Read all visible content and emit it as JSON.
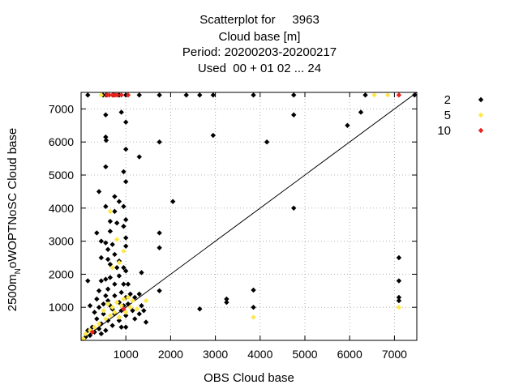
{
  "chart_data": {
    "type": "scatter",
    "title_lines": [
      "Scatterplot for     3963",
      "Cloud base [m]",
      "Period: 20200203-20200217",
      "Used  00 + 01 02 ... 24"
    ],
    "xlabel": "OBS Cloud base",
    "ylabel": "2500m_N oWOPTNoSC Cloud base",
    "ylabel_main": "2500m",
    "ylabel_sub": "N",
    "ylabel_rest": "oWOPTNoSC Cloud base",
    "xlim": [
      0,
      7500
    ],
    "ylim": [
      0,
      7500
    ],
    "xticks": [
      1000,
      2000,
      3000,
      4000,
      5000,
      6000,
      7000
    ],
    "yticks": [
      1000,
      2000,
      3000,
      4000,
      5000,
      6000,
      7000
    ],
    "grid": true,
    "diagonal": true,
    "legend_position": "right",
    "series": [
      {
        "name": "2",
        "color": "#000000",
        "points": [
          [
            150,
            7420
          ],
          [
            490,
            7420
          ],
          [
            560,
            7420
          ],
          [
            720,
            7420
          ],
          [
            850,
            7420
          ],
          [
            1000,
            7420
          ],
          [
            1300,
            7420
          ],
          [
            1750,
            7420
          ],
          [
            2350,
            7420
          ],
          [
            2650,
            7420
          ],
          [
            2950,
            7420
          ],
          [
            3850,
            7420
          ],
          [
            4750,
            7420
          ],
          [
            6350,
            7420
          ],
          [
            7450,
            7420
          ],
          [
            900,
            6900
          ],
          [
            6250,
            6900
          ],
          [
            550,
            6820
          ],
          [
            4750,
            6820
          ],
          [
            1000,
            6600
          ],
          [
            5950,
            6500
          ],
          [
            2950,
            6200
          ],
          [
            550,
            6150
          ],
          [
            560,
            6050
          ],
          [
            1750,
            6000
          ],
          [
            4150,
            6000
          ],
          [
            1000,
            5780
          ],
          [
            1300,
            5550
          ],
          [
            550,
            5250
          ],
          [
            950,
            5100
          ],
          [
            1000,
            4800
          ],
          [
            400,
            4500
          ],
          [
            750,
            4350
          ],
          [
            850,
            4200
          ],
          [
            2050,
            4200
          ],
          [
            950,
            4050
          ],
          [
            550,
            4050
          ],
          [
            750,
            3900
          ],
          [
            4750,
            4000
          ],
          [
            1000,
            3650
          ],
          [
            650,
            3600
          ],
          [
            800,
            3550
          ],
          [
            950,
            3450
          ],
          [
            650,
            3300
          ],
          [
            350,
            3250
          ],
          [
            1750,
            3250
          ],
          [
            1000,
            3100
          ],
          [
            450,
            3000
          ],
          [
            550,
            2950
          ],
          [
            700,
            2900
          ],
          [
            1000,
            2850
          ],
          [
            600,
            2750
          ],
          [
            1750,
            2800
          ],
          [
            750,
            2600
          ],
          [
            450,
            2500
          ],
          [
            600,
            2450
          ],
          [
            850,
            2400
          ],
          [
            650,
            2300
          ],
          [
            800,
            2200
          ],
          [
            950,
            2200
          ],
          [
            1000,
            2100
          ],
          [
            1350,
            2050
          ],
          [
            850,
            1950
          ],
          [
            650,
            1900
          ],
          [
            550,
            1850
          ],
          [
            150,
            1800
          ],
          [
            450,
            1800
          ],
          [
            750,
            1700
          ],
          [
            950,
            1700
          ],
          [
            1050,
            1700
          ],
          [
            600,
            1550
          ],
          [
            400,
            1500
          ],
          [
            1750,
            1500
          ],
          [
            900,
            1450
          ],
          [
            1100,
            1400
          ],
          [
            1300,
            1400
          ],
          [
            550,
            1350
          ],
          [
            750,
            1350
          ],
          [
            1000,
            1300
          ],
          [
            1200,
            1300
          ],
          [
            3250,
            1250
          ],
          [
            3250,
            1150
          ],
          [
            350,
            1250
          ],
          [
            600,
            1200
          ],
          [
            850,
            1150
          ],
          [
            1050,
            1100
          ],
          [
            1350,
            1050
          ],
          [
            200,
            1050
          ],
          [
            400,
            1000
          ],
          [
            700,
            950
          ],
          [
            900,
            900
          ],
          [
            1150,
            900
          ],
          [
            1400,
            900
          ],
          [
            2650,
            950
          ],
          [
            3850,
            1000
          ],
          [
            3850,
            1520
          ],
          [
            300,
            850
          ],
          [
            500,
            800
          ],
          [
            750,
            800
          ],
          [
            1000,
            750
          ],
          [
            1300,
            800
          ],
          [
            350,
            650
          ],
          [
            600,
            600
          ],
          [
            850,
            600
          ],
          [
            1200,
            650
          ],
          [
            450,
            500
          ],
          [
            700,
            450
          ],
          [
            900,
            400
          ],
          [
            250,
            400
          ],
          [
            400,
            350
          ],
          [
            550,
            300
          ],
          [
            150,
            300
          ],
          [
            300,
            250
          ],
          [
            450,
            200
          ],
          [
            200,
            150
          ],
          [
            100,
            100
          ],
          [
            50,
            50
          ],
          [
            1450,
            550
          ],
          [
            1000,
            400
          ],
          [
            650,
            1050
          ],
          [
            500,
            1100
          ],
          [
            950,
            1050
          ],
          [
            7100,
            2500
          ],
          [
            7100,
            1800
          ],
          [
            7100,
            1300
          ],
          [
            7100,
            1200
          ]
        ]
      },
      {
        "name": "5",
        "color": "#ffe84a",
        "points": [
          [
            450,
            7420
          ],
          [
            6550,
            7420
          ],
          [
            6850,
            7420
          ],
          [
            650,
            3900
          ],
          [
            800,
            3050
          ],
          [
            950,
            2700
          ],
          [
            850,
            2350
          ],
          [
            700,
            2200
          ],
          [
            1050,
            1300
          ],
          [
            950,
            1250
          ],
          [
            1150,
            1200
          ],
          [
            800,
            1150
          ],
          [
            600,
            1100
          ],
          [
            900,
            1050
          ],
          [
            700,
            1000
          ],
          [
            1100,
            1000
          ],
          [
            500,
            900
          ],
          [
            1000,
            850
          ],
          [
            750,
            850
          ],
          [
            650,
            750
          ],
          [
            850,
            700
          ],
          [
            1250,
            950
          ],
          [
            550,
            650
          ],
          [
            400,
            500
          ],
          [
            300,
            400
          ],
          [
            200,
            300
          ],
          [
            100,
            200
          ],
          [
            50,
            50
          ],
          [
            3850,
            700
          ],
          [
            7100,
            1000
          ],
          [
            1450,
            1200
          ]
        ]
      },
      {
        "name": "10",
        "color": "#e8221c",
        "points": [
          [
            580,
            7420
          ],
          [
            630,
            7420
          ],
          [
            700,
            7420
          ],
          [
            760,
            7420
          ],
          [
            800,
            7420
          ],
          [
            900,
            7420
          ],
          [
            1050,
            7420
          ],
          [
            7100,
            7420
          ],
          [
            950,
            950
          ],
          [
            250,
            250
          ]
        ]
      }
    ]
  }
}
